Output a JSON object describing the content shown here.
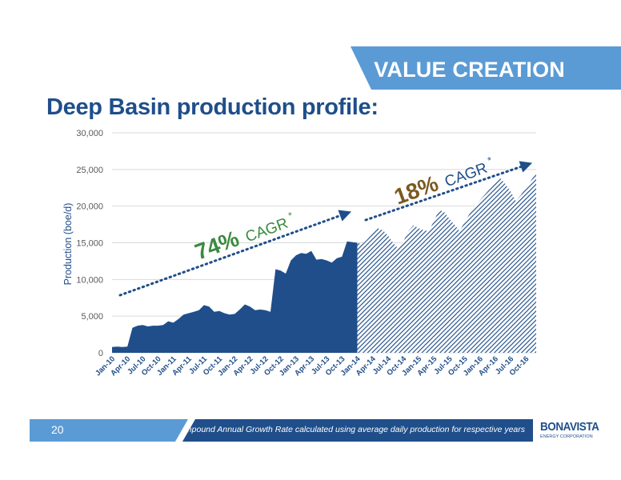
{
  "header": {
    "section_title": "VALUE CREATION"
  },
  "page": {
    "title": "Deep Basin production profile:"
  },
  "chart_data": {
    "type": "area",
    "ylabel": "Production (boe/d)",
    "ylim": [
      0,
      30000
    ],
    "y_ticks": [
      "0",
      "5,000",
      "10,000",
      "15,000",
      "20,000",
      "25,000",
      "30,000"
    ],
    "x_ticks": [
      "Jan-10",
      "Apr-10",
      "Jul-10",
      "Oct-10",
      "Jan-11",
      "Apr-11",
      "Jul-11",
      "Oct-11",
      "Jan-12",
      "Apr-12",
      "Jul-12",
      "Oct-12",
      "Jan-13",
      "Apr-13",
      "Jul-13",
      "Oct-13",
      "Jan-14",
      "Apr-14",
      "Jul-14",
      "Oct-14",
      "Jan-15",
      "Apr-15",
      "Jul-15",
      "Oct-15",
      "Jan-16",
      "Apr-16",
      "Jul-16",
      "Oct-16"
    ],
    "grid": true,
    "series": [
      {
        "style": "solid",
        "x": [
          "Jan-10",
          "Feb-10",
          "Mar-10",
          "Apr-10",
          "May-10",
          "Jun-10",
          "Jul-10",
          "Aug-10",
          "Sep-10",
          "Oct-10",
          "Nov-10",
          "Dec-10",
          "Jan-11",
          "Feb-11",
          "Mar-11",
          "Apr-11",
          "May-11",
          "Jun-11",
          "Jul-11",
          "Aug-11",
          "Sep-11",
          "Oct-11",
          "Nov-11",
          "Dec-11",
          "Jan-12",
          "Feb-12",
          "Mar-12",
          "Apr-12",
          "May-12",
          "Jun-12",
          "Jul-12",
          "Aug-12",
          "Sep-12",
          "Oct-12",
          "Nov-12",
          "Dec-12",
          "Jan-13",
          "Feb-13",
          "Mar-13",
          "Apr-13",
          "May-13",
          "Jun-13",
          "Jul-13",
          "Aug-13",
          "Sep-13",
          "Oct-13",
          "Nov-13",
          "Dec-13",
          "Jan-14"
        ],
        "values": [
          800,
          850,
          800,
          850,
          3400,
          3700,
          3800,
          3600,
          3700,
          3700,
          3800,
          4300,
          4100,
          4600,
          5200,
          5400,
          5600,
          5800,
          6500,
          6300,
          5600,
          5700,
          5400,
          5200,
          5300,
          5900,
          6600,
          6300,
          5800,
          5900,
          5800,
          5600,
          11400,
          11200,
          10800,
          12600,
          13300,
          13600,
          13500,
          13900,
          12700,
          12800,
          12600,
          12300,
          12900,
          13100,
          15200,
          15100,
          15000
        ]
      },
      {
        "style": "hatched",
        "x": [
          "Jan-14",
          "Feb-14",
          "Mar-14",
          "Apr-14",
          "May-14",
          "Jun-14",
          "Jul-14",
          "Aug-14",
          "Sep-14",
          "Oct-14",
          "Nov-14",
          "Dec-14",
          "Jan-15",
          "Feb-15",
          "Mar-15",
          "Apr-15",
          "May-15",
          "Jun-15",
          "Jul-15",
          "Aug-15",
          "Sep-15",
          "Oct-15",
          "Nov-15",
          "Dec-15",
          "Jan-16",
          "Feb-16",
          "Mar-16",
          "Apr-16",
          "May-16",
          "Jun-16",
          "Jul-16",
          "Aug-16",
          "Sep-16",
          "Oct-16",
          "Nov-16",
          "Dec-16"
        ],
        "values": [
          15000,
          14800,
          15500,
          16300,
          17000,
          16700,
          16000,
          15000,
          14200,
          15200,
          16600,
          17400,
          17000,
          16700,
          16600,
          18000,
          19500,
          19200,
          18300,
          17500,
          16600,
          17800,
          19000,
          20000,
          20800,
          21600,
          22400,
          23200,
          23800,
          23000,
          22000,
          20700,
          21500,
          22500,
          23500,
          24600
        ]
      }
    ],
    "annotations": [
      {
        "text_pct": "74%",
        "text_label": "CAGR",
        "asterisk": "*",
        "color": "#3a8a3e"
      },
      {
        "text_pct": "18%",
        "text_label": "CAGR",
        "asterisk": "*",
        "color": "#7a5a20"
      }
    ]
  },
  "footer": {
    "page_number": "20",
    "footnote": "* Compound Annual Growth Rate calculated using average daily production for respective years",
    "logo_main": "BONAVISTA",
    "logo_sub": "ENERGY CORPORATION"
  },
  "colors": {
    "accent": "#5b9bd5",
    "navy": "#1f4e8a",
    "green": "#3a8a3e",
    "brown": "#7a5a20"
  }
}
